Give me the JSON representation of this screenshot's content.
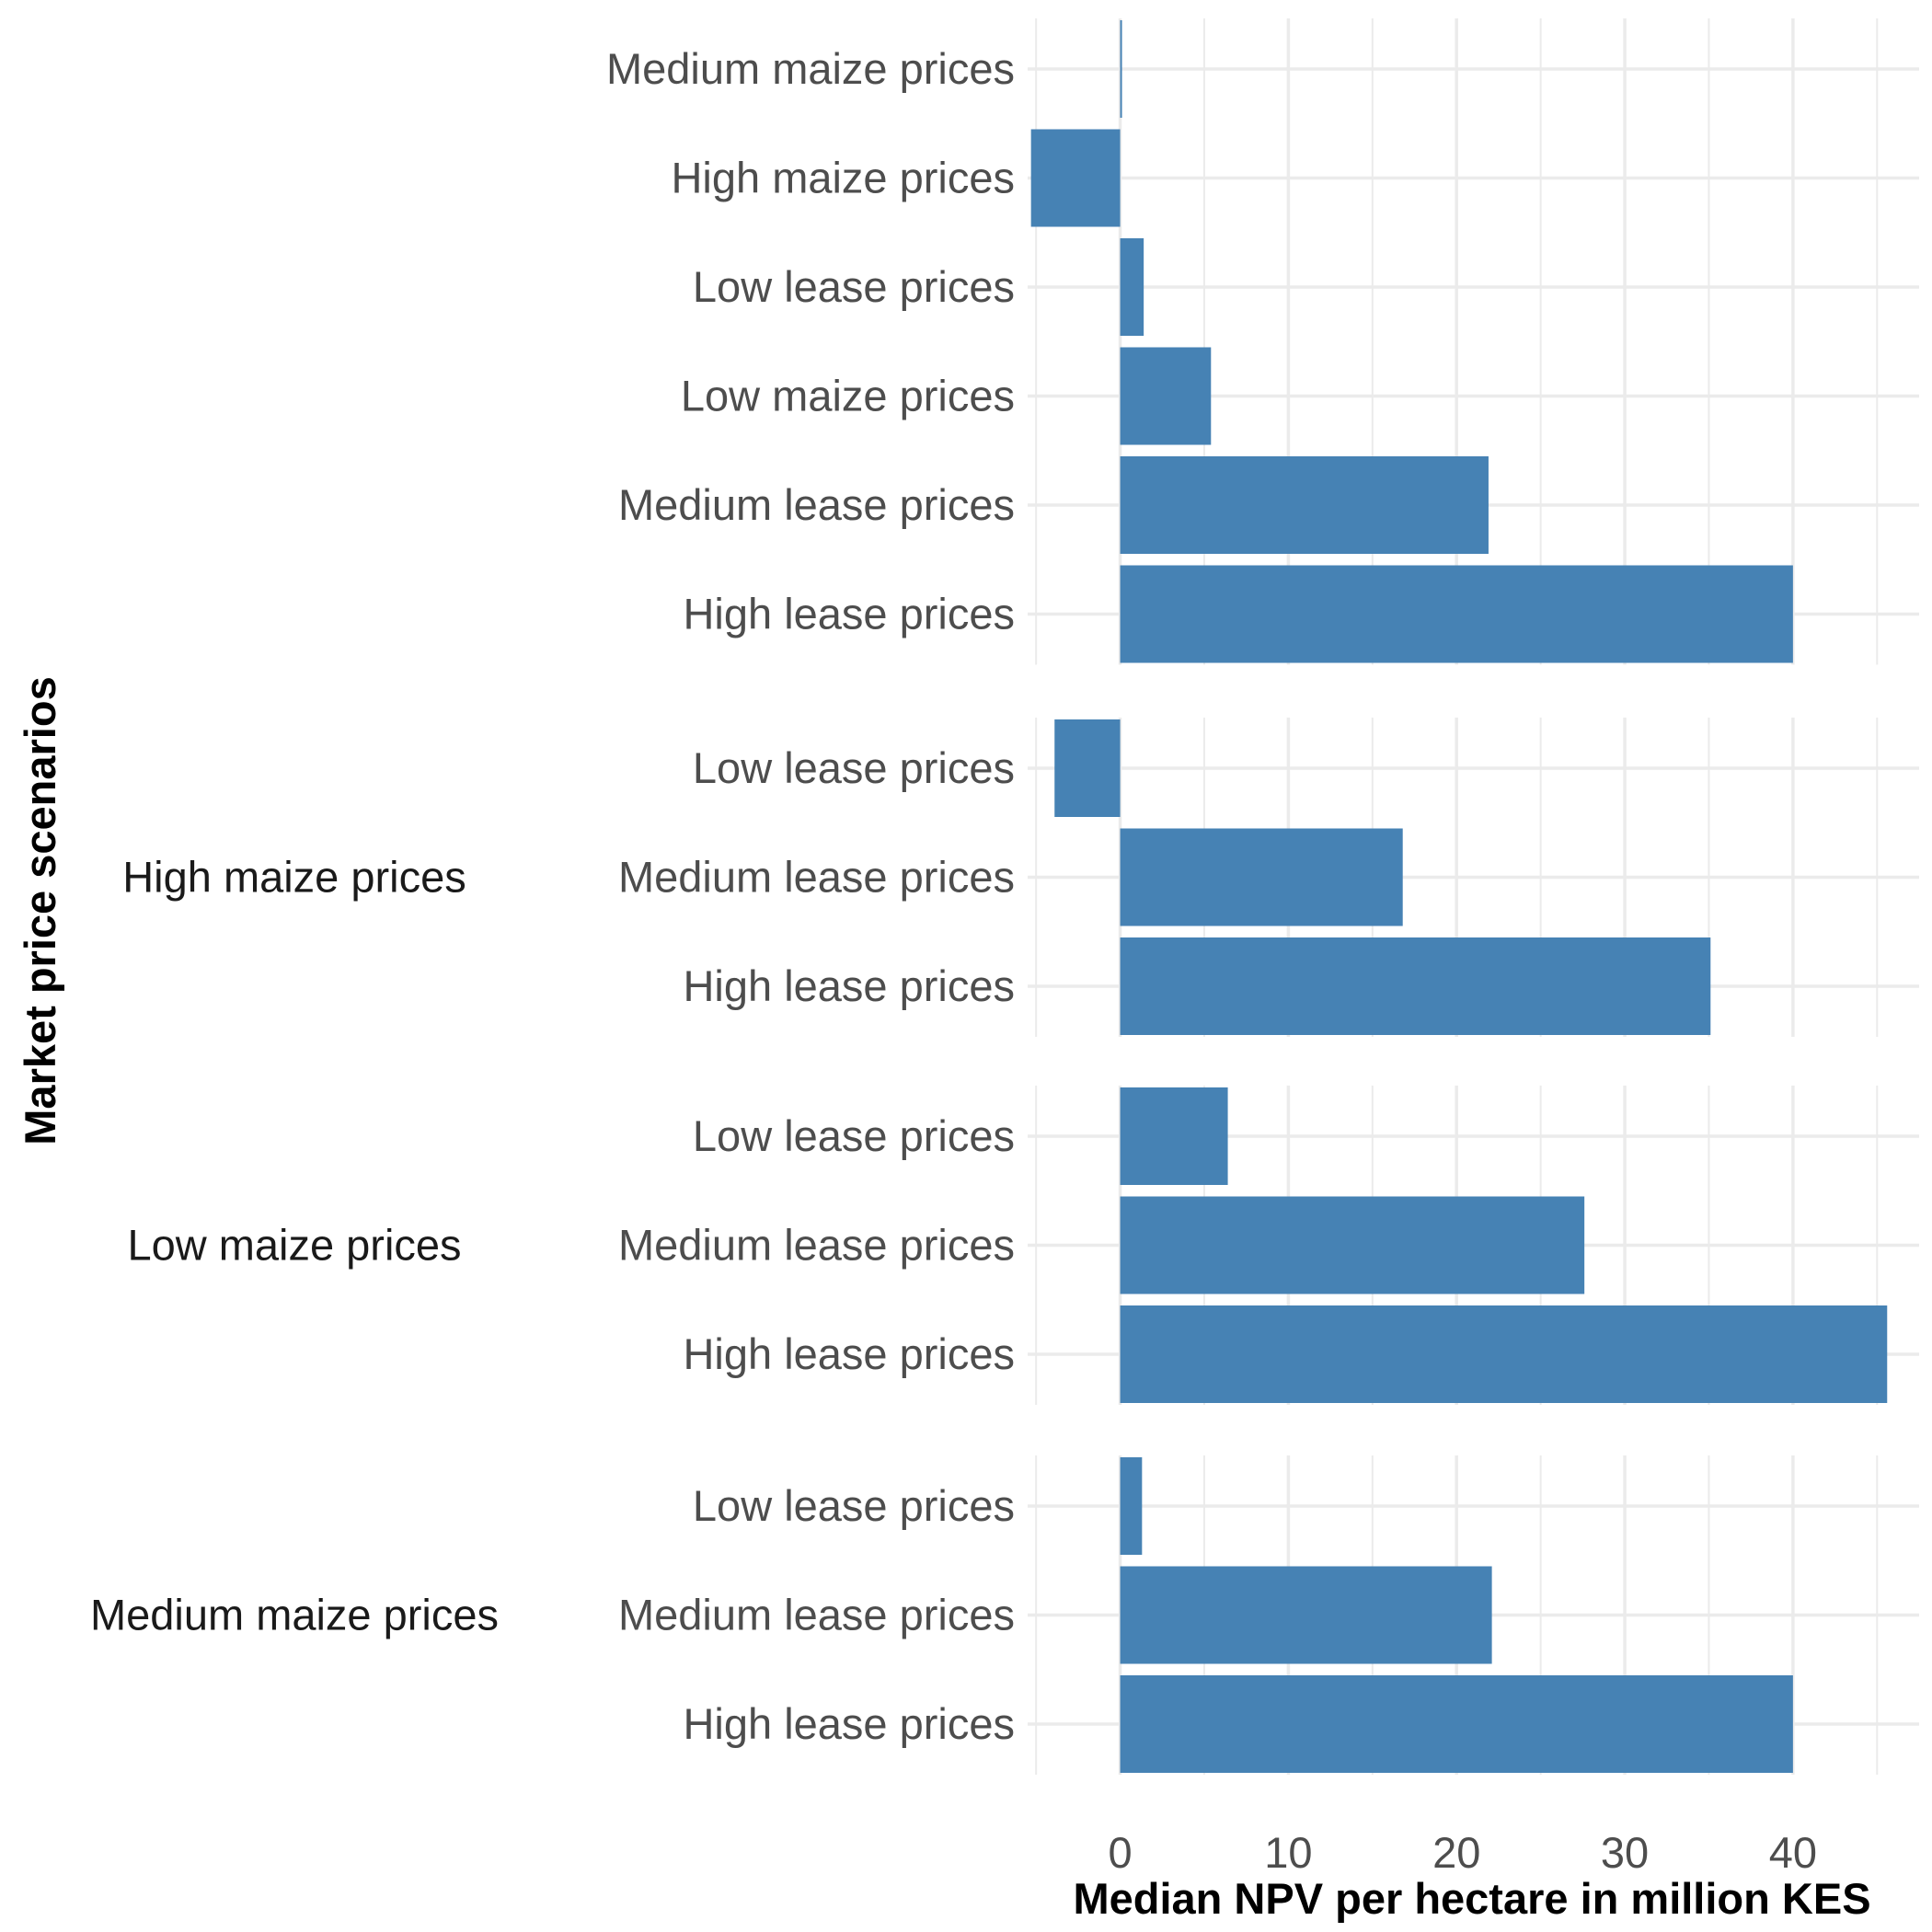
{
  "chart_data": {
    "type": "bar",
    "orientation": "horizontal",
    "xlabel": "Median NPV per hectare in million KES",
    "ylabel": "Market price scenarios",
    "xlim": [
      -5.5,
      47.5
    ],
    "x_ticks": [
      0,
      10,
      20,
      30,
      40
    ],
    "grid": true,
    "bar_color": "#4682b4",
    "facets": [
      {
        "label": "",
        "categories": [
          "Medium maize prices",
          "High maize prices",
          "Low lease prices",
          "Low maize prices",
          "Medium lease prices",
          "High lease prices"
        ],
        "values": [
          0.1,
          -5.3,
          1.4,
          5.4,
          21.9,
          40.0
        ]
      },
      {
        "label": "High maize prices",
        "categories": [
          "Low lease prices",
          "Medium lease prices",
          "High lease prices"
        ],
        "values": [
          -3.9,
          16.8,
          35.1
        ]
      },
      {
        "label": "Low maize prices",
        "categories": [
          "Low lease prices",
          "Medium lease prices",
          "High lease prices"
        ],
        "values": [
          6.4,
          27.6,
          45.6
        ]
      },
      {
        "label": "Medium maize prices",
        "categories": [
          "Low lease prices",
          "Medium lease prices",
          "High lease prices"
        ],
        "values": [
          1.3,
          22.1,
          40.0
        ]
      }
    ]
  }
}
